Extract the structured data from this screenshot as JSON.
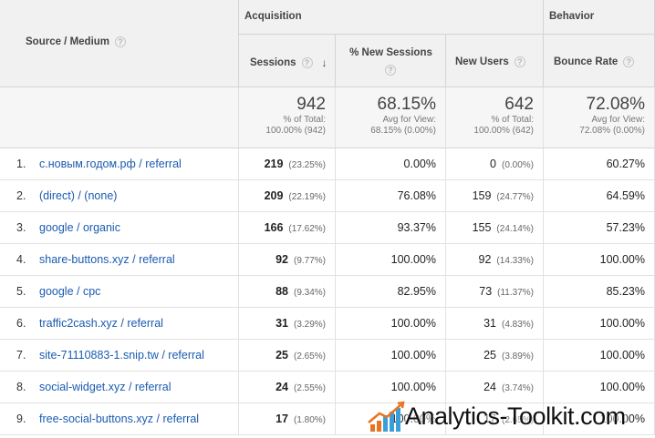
{
  "headers": {
    "source_medium": "Source / Medium",
    "acquisition": "Acquisition",
    "behavior": "Behavior",
    "sessions": "Sessions",
    "new_sessions": "% New Sessions",
    "new_users": "New Users",
    "bounce_rate": "Bounce Rate",
    "help": "?",
    "sort_arrow": "↓"
  },
  "totals": {
    "sessions": {
      "value": "942",
      "line1": "% of Total:",
      "line2": "100.00% (942)"
    },
    "new_sessions": {
      "value": "68.15%",
      "line1": "Avg for View:",
      "line2": "68.15% (0.00%)"
    },
    "new_users": {
      "value": "642",
      "line1": "% of Total:",
      "line2": "100.00% (642)"
    },
    "bounce_rate": {
      "value": "72.08%",
      "line1": "Avg for View:",
      "line2": "72.08% (0.00%)"
    }
  },
  "rows": [
    {
      "n": "1.",
      "source": "с.новым.годом.рф / referral",
      "sessions": "219",
      "sessions_pct": "(23.25%)",
      "new_sessions": "0.00%",
      "new_users": "0",
      "new_users_pct": "(0.00%)",
      "bounce": "60.27%"
    },
    {
      "n": "2.",
      "source": "(direct) / (none)",
      "sessions": "209",
      "sessions_pct": "(22.19%)",
      "new_sessions": "76.08%",
      "new_users": "159",
      "new_users_pct": "(24.77%)",
      "bounce": "64.59%"
    },
    {
      "n": "3.",
      "source": "google / organic",
      "sessions": "166",
      "sessions_pct": "(17.62%)",
      "new_sessions": "93.37%",
      "new_users": "155",
      "new_users_pct": "(24.14%)",
      "bounce": "57.23%"
    },
    {
      "n": "4.",
      "source": "share-buttons.xyz / referral",
      "sessions": "92",
      "sessions_pct": "(9.77%)",
      "new_sessions": "100.00%",
      "new_users": "92",
      "new_users_pct": "(14.33%)",
      "bounce": "100.00%"
    },
    {
      "n": "5.",
      "source": "google / cpc",
      "sessions": "88",
      "sessions_pct": "(9.34%)",
      "new_sessions": "82.95%",
      "new_users": "73",
      "new_users_pct": "(11.37%)",
      "bounce": "85.23%"
    },
    {
      "n": "6.",
      "source": "traffic2cash.xyz / referral",
      "sessions": "31",
      "sessions_pct": "(3.29%)",
      "new_sessions": "100.00%",
      "new_users": "31",
      "new_users_pct": "(4.83%)",
      "bounce": "100.00%"
    },
    {
      "n": "7.",
      "source": "site-71110883-1.snip.tw / referral",
      "sessions": "25",
      "sessions_pct": "(2.65%)",
      "new_sessions": "100.00%",
      "new_users": "25",
      "new_users_pct": "(3.89%)",
      "bounce": "100.00%"
    },
    {
      "n": "8.",
      "source": "social-widget.xyz / referral",
      "sessions": "24",
      "sessions_pct": "(2.55%)",
      "new_sessions": "100.00%",
      "new_users": "24",
      "new_users_pct": "(3.74%)",
      "bounce": "100.00%"
    },
    {
      "n": "9.",
      "source": "free-social-buttons.xyz / referral",
      "sessions": "17",
      "sessions_pct": "(1.80%)",
      "new_sessions": "100.00%",
      "new_users": "17",
      "new_users_pct": "(2.65%)",
      "bounce": "100.00%"
    }
  ],
  "watermark": {
    "text": "Analytics-Toolkit.com",
    "bar_colors": [
      "#e8741e",
      "#3a9fd8"
    ]
  }
}
